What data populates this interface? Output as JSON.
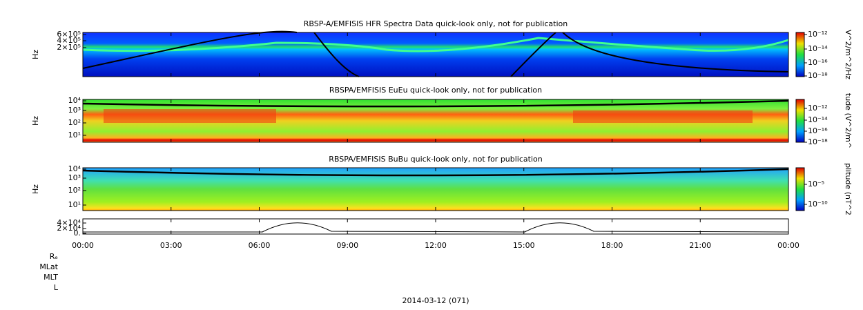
{
  "panels": [
    {
      "title": "RBSP-A/EMFISIS  HFR Spectra Data quick-look only, not for publication",
      "y_label": "Hz",
      "y_ticks": [
        "6×10⁵",
        "4×10⁵",
        "2×10⁵"
      ],
      "colorbar_label": "V^2/m^2/Hz",
      "colorbar_ticks": [
        "10⁻¹²",
        "10⁻¹⁴",
        "10⁻¹⁶",
        "10⁻¹⁸"
      ]
    },
    {
      "title": "RBSPA/EMFISIS  EuEu quick-look only, not for publication",
      "y_label": "Hz",
      "y_ticks": [
        "10⁴",
        "10³",
        "10²",
        "10¹"
      ],
      "colorbar_label": "tude (V^2/m^",
      "colorbar_ticks": [
        "10⁻¹²",
        "10⁻¹⁴",
        "10⁻¹⁶",
        "10⁻¹⁸"
      ]
    },
    {
      "title": "RBSPA/EMFISIS  BuBu quick-look only, not for publication",
      "y_label": "Hz",
      "y_ticks": [
        "10⁴",
        "10³",
        "10²",
        "10¹"
      ],
      "colorbar_label": "plitude (nT^2",
      "colorbar_ticks": [
        "10⁻⁵",
        "10⁻¹⁰"
      ]
    },
    {
      "y_ticks": [
        "4×10⁴",
        "2×10⁴",
        "0."
      ]
    }
  ],
  "x_ticks": [
    "00:00",
    "03:00",
    "06:00",
    "09:00",
    "12:00",
    "15:00",
    "18:00",
    "21:00",
    "00:00"
  ],
  "ephemeris_labels": [
    "Rₑ",
    "MLat",
    "MLT",
    "L"
  ],
  "date": "2014-03-12 (071)"
}
